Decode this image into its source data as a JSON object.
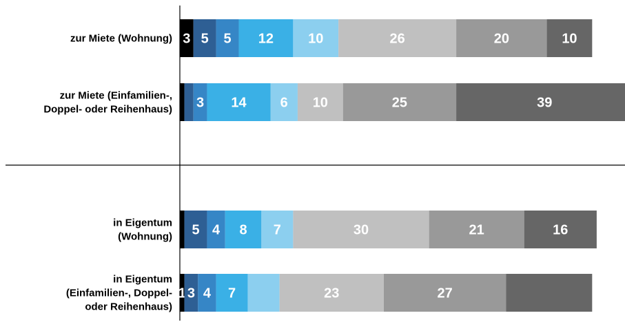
{
  "chart_data": {
    "type": "bar",
    "orientation": "horizontal",
    "stacked": true,
    "title": "",
    "xlabel": "",
    "ylabel": "",
    "grid": false,
    "categories": [
      {
        "lines": [
          "zur Miete (Wohnung)"
        ]
      },
      {
        "lines": [
          "zur Miete (Einfamilien-,",
          "Doppel- oder Reihenhaus)"
        ]
      },
      {
        "lines": [
          "in Eigentum",
          "(Wohnung)"
        ]
      },
      {
        "lines": [
          "in Eigentum",
          "(Einfamilien-, Doppel-",
          "oder Reihenhaus)"
        ]
      }
    ],
    "segment_colors": [
      "#000000",
      "#2e5f94",
      "#3686c6",
      "#3ab0e6",
      "#8ccfef",
      "#c0c0c0",
      "#999999",
      "#666666"
    ],
    "rows": [
      {
        "values": [
          3,
          5,
          5,
          12,
          10,
          26,
          20,
          10
        ],
        "labels": [
          "3",
          "5",
          "5",
          "12",
          "10",
          "26",
          "20",
          "10"
        ]
      },
      {
        "values": [
          1,
          2,
          3,
          14,
          6,
          10,
          25,
          39
        ],
        "labels": [
          "",
          "",
          "3",
          "14",
          "6",
          "10",
          "25",
          "39"
        ]
      },
      {
        "values": [
          1,
          5,
          4,
          8,
          7,
          30,
          21,
          16
        ],
        "labels": [
          "",
          "5",
          "4",
          "8",
          "7",
          "30",
          "21",
          "16"
        ]
      },
      {
        "values": [
          1,
          3,
          4,
          7,
          7,
          23,
          27,
          19
        ],
        "labels": [
          "1",
          "3",
          "4",
          "7",
          "",
          "23",
          "27",
          ""
        ]
      }
    ]
  }
}
